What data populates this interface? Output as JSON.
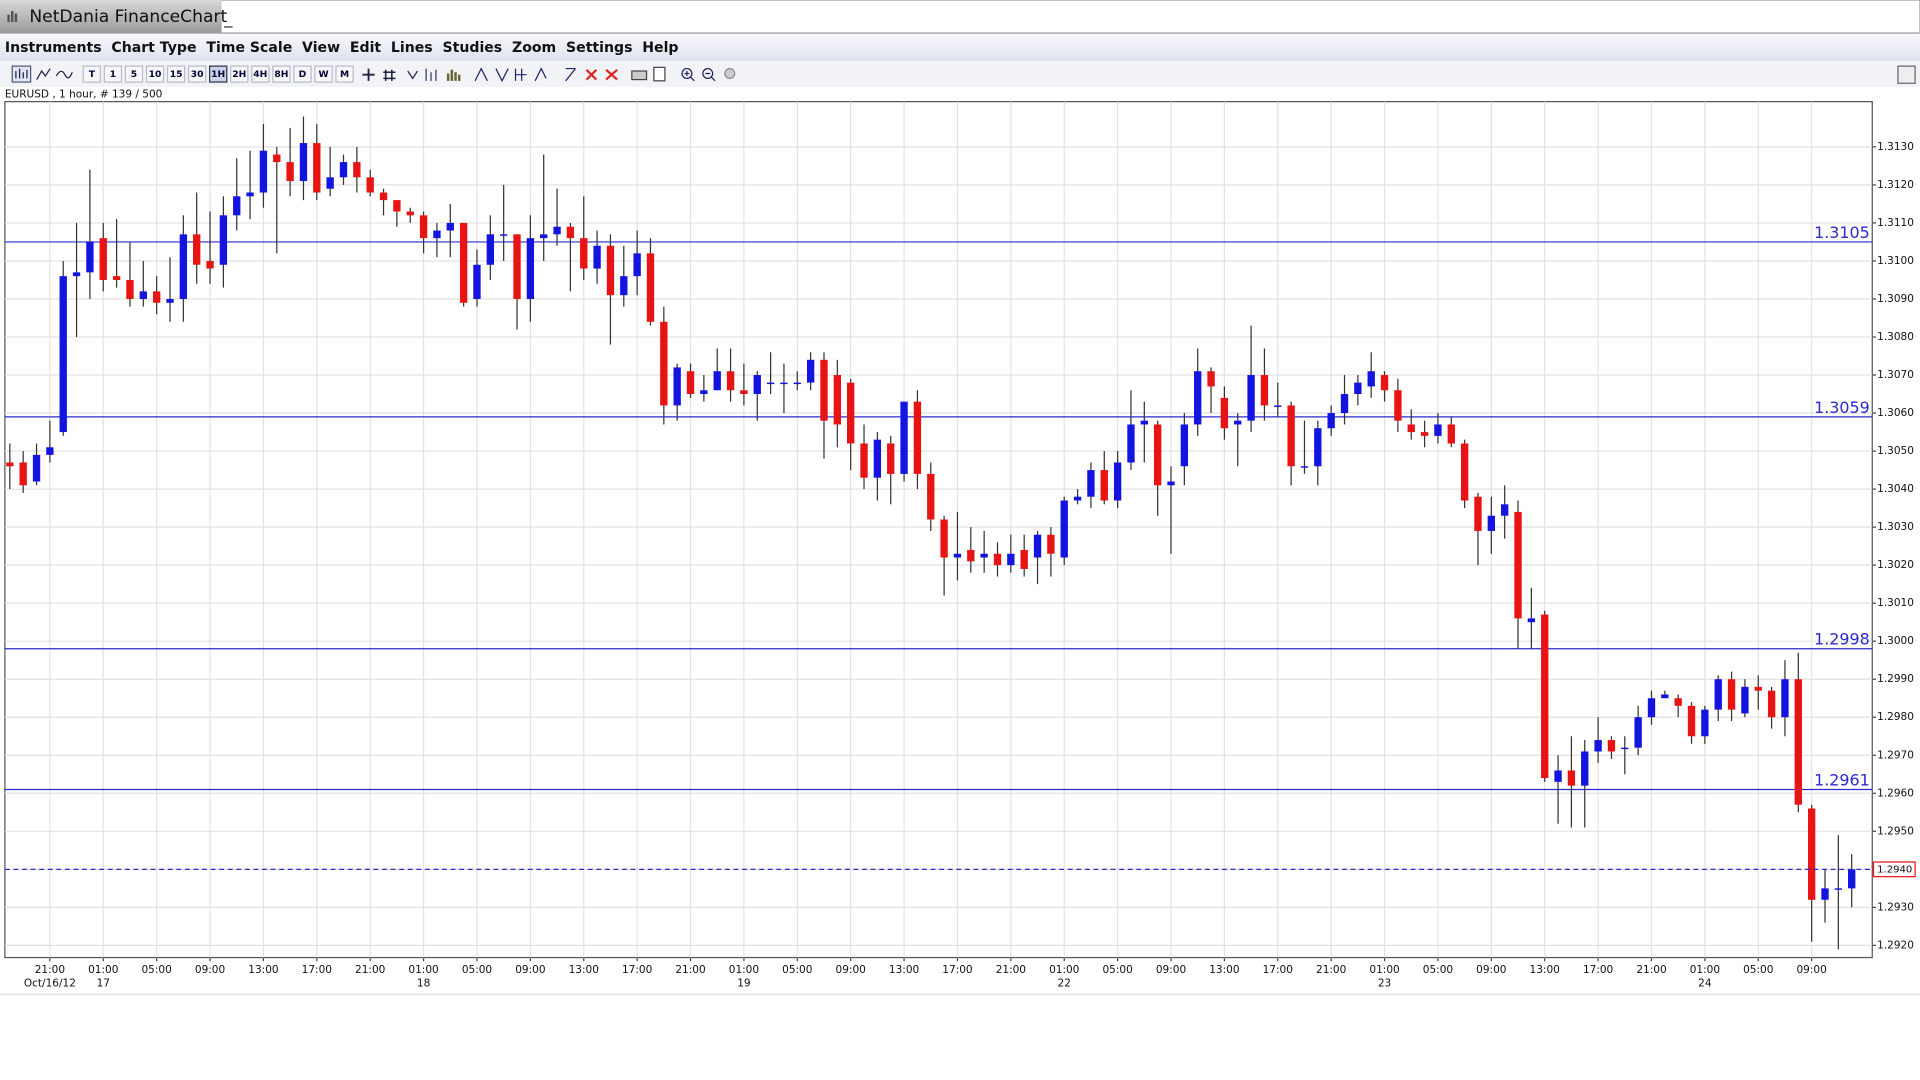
{
  "window": {
    "title": "NetDania FinanceChart"
  },
  "menu": {
    "items": [
      "Instruments",
      "Chart Type",
      "Time Scale",
      "View",
      "Edit",
      "Lines",
      "Studies",
      "Zoom",
      "Settings",
      "Help"
    ]
  },
  "toolbar": {
    "buttons": [
      "T",
      "1",
      "5",
      "10",
      "15",
      "30",
      "1H",
      "2H",
      "4H",
      "8H",
      "D",
      "W",
      "M"
    ],
    "active_button": 6
  },
  "chart_data": {
    "type": "candlestick",
    "title": "EURUSD , 1 hour, # 139 / 500",
    "up_color": "#1414e0",
    "down_color": "#e81414",
    "grid": true,
    "open": [
      1.3047,
      1.3047,
      1.3042,
      1.3049,
      1.3055,
      1.3096,
      1.3097,
      1.3106,
      1.3096,
      1.3095,
      1.309,
      1.3092,
      1.3089,
      1.309,
      1.3107,
      1.31,
      1.3099,
      1.3112,
      1.3117,
      1.3118,
      1.3128,
      1.3126,
      1.3121,
      1.3131,
      1.3119,
      1.3122,
      1.3126,
      1.3122,
      1.3118,
      1.3116,
      1.3113,
      1.3112,
      1.3106,
      1.3108,
      1.311,
      1.309,
      1.3099,
      1.3107,
      1.3107,
      1.309,
      1.3106,
      1.3107,
      1.3109,
      1.3106,
      1.3098,
      1.3104,
      1.3091,
      1.3096,
      1.3102,
      1.3084,
      1.3062,
      1.3071,
      1.3065,
      1.3066,
      1.3071,
      1.3066,
      1.3065,
      1.3068,
      1.3068,
      1.3068,
      1.3068,
      1.3074,
      1.307,
      1.3068,
      1.3052,
      1.3043,
      1.3052,
      1.3044,
      1.3063,
      1.3044,
      1.3032,
      1.3022,
      1.3024,
      1.3022,
      1.3023,
      1.302,
      1.3024,
      1.3022,
      1.3028,
      1.3022,
      1.3037,
      1.3038,
      1.3045,
      1.3037,
      1.3047,
      1.3057,
      1.3057,
      1.3041,
      1.3046,
      1.3057,
      1.3071,
      1.3064,
      1.3057,
      1.3058,
      1.307,
      1.3062,
      1.3062,
      1.3046,
      1.3046,
      1.3056,
      1.306,
      1.3065,
      1.3067,
      1.307,
      1.3066,
      1.3057,
      1.3055,
      1.3054,
      1.3057,
      1.3052,
      1.3038,
      1.3029,
      1.3033,
      1.3034,
      1.3005,
      1.3007,
      1.2963,
      1.2966,
      1.2962,
      1.2971,
      1.2974,
      1.2972,
      1.2972,
      1.298,
      1.2985,
      1.2985,
      1.2983,
      1.2975,
      1.2982,
      1.299,
      1.2981,
      1.2988,
      1.2987,
      1.298,
      1.299,
      1.2956,
      1.2932,
      1.2935,
      1.2935
    ],
    "high": [
      1.3052,
      1.305,
      1.3052,
      1.3058,
      1.31,
      1.311,
      1.3124,
      1.311,
      1.3111,
      1.3105,
      1.31,
      1.3096,
      1.3101,
      1.3112,
      1.3118,
      1.3113,
      1.3117,
      1.3127,
      1.3129,
      1.3136,
      1.313,
      1.3135,
      1.3138,
      1.3136,
      1.313,
      1.3128,
      1.313,
      1.3124,
      1.3119,
      1.3116,
      1.3114,
      1.3113,
      1.311,
      1.3115,
      1.311,
      1.3103,
      1.3112,
      1.312,
      1.3107,
      1.3112,
      1.3128,
      1.3119,
      1.311,
      1.3117,
      1.3108,
      1.3107,
      1.3104,
      1.3108,
      1.3106,
      1.3088,
      1.3073,
      1.3073,
      1.307,
      1.3077,
      1.3077,
      1.3073,
      1.3071,
      1.3076,
      1.3073,
      1.3071,
      1.3076,
      1.3076,
      1.3074,
      1.3069,
      1.3057,
      1.3055,
      1.3054,
      1.3063,
      1.3066,
      1.3047,
      1.3033,
      1.3034,
      1.303,
      1.3029,
      1.3026,
      1.3028,
      1.3028,
      1.3029,
      1.303,
      1.3038,
      1.304,
      1.3047,
      1.305,
      1.305,
      1.3066,
      1.3063,
      1.3058,
      1.3046,
      1.306,
      1.3077,
      1.3072,
      1.3067,
      1.306,
      1.3083,
      1.3077,
      1.3068,
      1.3063,
      1.3058,
      1.3058,
      1.3062,
      1.307,
      1.307,
      1.3076,
      1.3071,
      1.3069,
      1.3061,
      1.3058,
      1.306,
      1.3059,
      1.3053,
      1.3039,
      1.3038,
      1.3041,
      1.3037,
      1.3014,
      1.3008,
      1.297,
      1.2975,
      1.2974,
      1.298,
      1.2975,
      1.2975,
      1.2983,
      1.2987,
      1.2987,
      1.2986,
      1.2984,
      1.2983,
      1.2991,
      1.2992,
      1.299,
      1.2991,
      1.2988,
      1.2995,
      1.2997,
      1.2957,
      1.294,
      1.2949,
      1.2944
    ],
    "low": [
      1.304,
      1.3039,
      1.3041,
      1.3047,
      1.3054,
      1.308,
      1.309,
      1.3092,
      1.3093,
      1.3088,
      1.3088,
      1.3086,
      1.3084,
      1.3084,
      1.3094,
      1.3094,
      1.3093,
      1.3108,
      1.3111,
      1.3114,
      1.3102,
      1.3117,
      1.3116,
      1.3116,
      1.3117,
      1.312,
      1.3118,
      1.3117,
      1.3112,
      1.3109,
      1.311,
      1.3102,
      1.3101,
      1.3101,
      1.3088,
      1.3088,
      1.3095,
      1.31,
      1.3082,
      1.3084,
      1.31,
      1.3104,
      1.3092,
      1.3095,
      1.3094,
      1.3078,
      1.3088,
      1.3091,
      1.3083,
      1.3057,
      1.3058,
      1.3064,
      1.3063,
      1.3066,
      1.3063,
      1.3062,
      1.3058,
      1.3065,
      1.306,
      1.3066,
      1.3066,
      1.3048,
      1.3051,
      1.3045,
      1.304,
      1.3037,
      1.3036,
      1.3042,
      1.304,
      1.3029,
      1.3012,
      1.3016,
      1.3018,
      1.3018,
      1.3017,
      1.3018,
      1.3017,
      1.3015,
      1.3017,
      1.302,
      1.3036,
      1.3035,
      1.3036,
      1.3035,
      1.3045,
      1.3047,
      1.3033,
      1.3023,
      1.3041,
      1.3054,
      1.306,
      1.3053,
      1.3046,
      1.3055,
      1.3058,
      1.3059,
      1.3041,
      1.3044,
      1.3041,
      1.3054,
      1.3057,
      1.3062,
      1.3064,
      1.3063,
      1.3055,
      1.3053,
      1.3051,
      1.3052,
      1.3051,
      1.3035,
      1.302,
      1.3023,
      1.3027,
      1.2998,
      1.2998,
      1.2963,
      1.2952,
      1.2951,
      1.2951,
      1.2968,
      1.2969,
      1.2965,
      1.297,
      1.2978,
      1.2985,
      1.298,
      1.2973,
      1.2973,
      1.2979,
      1.2979,
      1.298,
      1.2982,
      1.2977,
      1.2975,
      1.2955,
      1.2921,
      1.2926,
      1.2919,
      1.293
    ],
    "close": [
      1.3046,
      1.3041,
      1.3049,
      1.3051,
      1.3096,
      1.3097,
      1.3105,
      1.3095,
      1.3095,
      1.309,
      1.3092,
      1.3089,
      1.309,
      1.3107,
      1.3099,
      1.3098,
      1.3112,
      1.3117,
      1.3118,
      1.3129,
      1.3126,
      1.3121,
      1.3131,
      1.3118,
      1.3122,
      1.3126,
      1.3122,
      1.3118,
      1.3116,
      1.3113,
      1.3112,
      1.3106,
      1.3108,
      1.311,
      1.3089,
      1.3099,
      1.3107,
      1.3107,
      1.309,
      1.3106,
      1.3107,
      1.3109,
      1.3106,
      1.3098,
      1.3104,
      1.3091,
      1.3096,
      1.3102,
      1.3084,
      1.3062,
      1.3072,
      1.3065,
      1.3066,
      1.3071,
      1.3066,
      1.3065,
      1.307,
      1.3068,
      1.3068,
      1.3068,
      1.3074,
      1.3058,
      1.3057,
      1.3052,
      1.3043,
      1.3053,
      1.3044,
      1.3063,
      1.3044,
      1.3032,
      1.3022,
      1.3023,
      1.3021,
      1.3023,
      1.302,
      1.3023,
      1.3019,
      1.3028,
      1.3023,
      1.3037,
      1.3038,
      1.3045,
      1.3037,
      1.3047,
      1.3057,
      1.3058,
      1.3041,
      1.3042,
      1.3057,
      1.3071,
      1.3067,
      1.3056,
      1.3058,
      1.307,
      1.3062,
      1.3062,
      1.3046,
      1.3046,
      1.3056,
      1.306,
      1.3065,
      1.3068,
      1.3071,
      1.3066,
      1.3058,
      1.3055,
      1.3054,
      1.3057,
      1.3052,
      1.3037,
      1.3029,
      1.3033,
      1.3036,
      1.3006,
      1.3006,
      1.2964,
      1.2966,
      1.2962,
      1.2971,
      1.2974,
      1.2971,
      1.2972,
      1.298,
      1.2985,
      1.2986,
      1.2983,
      1.2975,
      1.2982,
      1.299,
      1.2982,
      1.2988,
      1.2987,
      1.298,
      1.299,
      1.2957,
      1.2932,
      1.2935,
      1.2935,
      1.294
    ],
    "xlim": [
      -0.37,
      139.54
    ],
    "ylim": [
      1.29168,
      1.31419
    ],
    "yticks": [
      {
        "value": 1.292,
        "label": "1.2920"
      },
      {
        "value": 1.293,
        "label": "1.2930"
      },
      {
        "value": 1.294,
        "label": "1.2940"
      },
      {
        "value": 1.295,
        "label": "1.2950"
      },
      {
        "value": 1.296,
        "label": "1.2960"
      },
      {
        "value": 1.297,
        "label": "1.2970"
      },
      {
        "value": 1.298,
        "label": "1.2980"
      },
      {
        "value": 1.299,
        "label": "1.2990"
      },
      {
        "value": 1.3,
        "label": "1.3000"
      },
      {
        "value": 1.301,
        "label": "1.3010"
      },
      {
        "value": 1.302,
        "label": "1.3020"
      },
      {
        "value": 1.303,
        "label": "1.3030"
      },
      {
        "value": 1.304,
        "label": "1.3040"
      },
      {
        "value": 1.305,
        "label": "1.3050"
      },
      {
        "value": 1.306,
        "label": "1.3060"
      },
      {
        "value": 1.307,
        "label": "1.3070"
      },
      {
        "value": 1.308,
        "label": "1.3080"
      },
      {
        "value": 1.309,
        "label": "1.3090"
      },
      {
        "value": 1.31,
        "label": "1.3100"
      },
      {
        "value": 1.311,
        "label": "1.3110"
      },
      {
        "value": 1.312,
        "label": "1.3120"
      },
      {
        "value": 1.313,
        "label": "1.3130"
      }
    ],
    "xticks": [
      {
        "value": 3,
        "label": "21:00"
      },
      {
        "value": 7,
        "label": "01:00"
      },
      {
        "value": 11,
        "label": "05:00"
      },
      {
        "value": 15,
        "label": "09:00"
      },
      {
        "value": 19,
        "label": "13:00"
      },
      {
        "value": 23,
        "label": "17:00"
      },
      {
        "value": 27,
        "label": "21:00"
      },
      {
        "value": 31,
        "label": "01:00"
      },
      {
        "value": 35,
        "label": "05:00"
      },
      {
        "value": 39,
        "label": "09:00"
      },
      {
        "value": 43,
        "label": "13:00"
      },
      {
        "value": 47,
        "label": "17:00"
      },
      {
        "value": 51,
        "label": "21:00"
      },
      {
        "value": 55,
        "label": "01:00"
      },
      {
        "value": 59,
        "label": "05:00"
      },
      {
        "value": 63,
        "label": "09:00"
      },
      {
        "value": 67,
        "label": "13:00"
      },
      {
        "value": 71,
        "label": "17:00"
      },
      {
        "value": 75,
        "label": "21:00"
      },
      {
        "value": 79,
        "label": "01:00"
      },
      {
        "value": 83,
        "label": "05:00"
      },
      {
        "value": 87,
        "label": "09:00"
      },
      {
        "value": 91,
        "label": "13:00"
      },
      {
        "value": 95,
        "label": "17:00"
      },
      {
        "value": 99,
        "label": "21:00"
      },
      {
        "value": 103,
        "label": "01:00"
      },
      {
        "value": 107,
        "label": "05:00"
      },
      {
        "value": 111,
        "label": "09:00"
      },
      {
        "value": 115,
        "label": "13:00"
      },
      {
        "value": 119,
        "label": "17:00"
      },
      {
        "value": 123,
        "label": "21:00"
      },
      {
        "value": 127,
        "label": "01:00"
      },
      {
        "value": 131,
        "label": "05:00"
      },
      {
        "value": 135,
        "label": "09:00"
      }
    ],
    "date_ticks": [
      {
        "value": 3,
        "label": "Oct/16/12"
      },
      {
        "value": 7,
        "label": "17"
      },
      {
        "value": 31,
        "label": "18"
      },
      {
        "value": 55,
        "label": "19"
      },
      {
        "value": 79,
        "label": "22"
      },
      {
        "value": 103,
        "label": "23"
      },
      {
        "value": 127,
        "label": "24"
      }
    ],
    "levels": [
      1.3105,
      1.3059,
      1.2998,
      1.2961
    ],
    "level_color": "#2a2ad0",
    "last_price": {
      "value": 1.294,
      "label": "1.2940"
    }
  }
}
